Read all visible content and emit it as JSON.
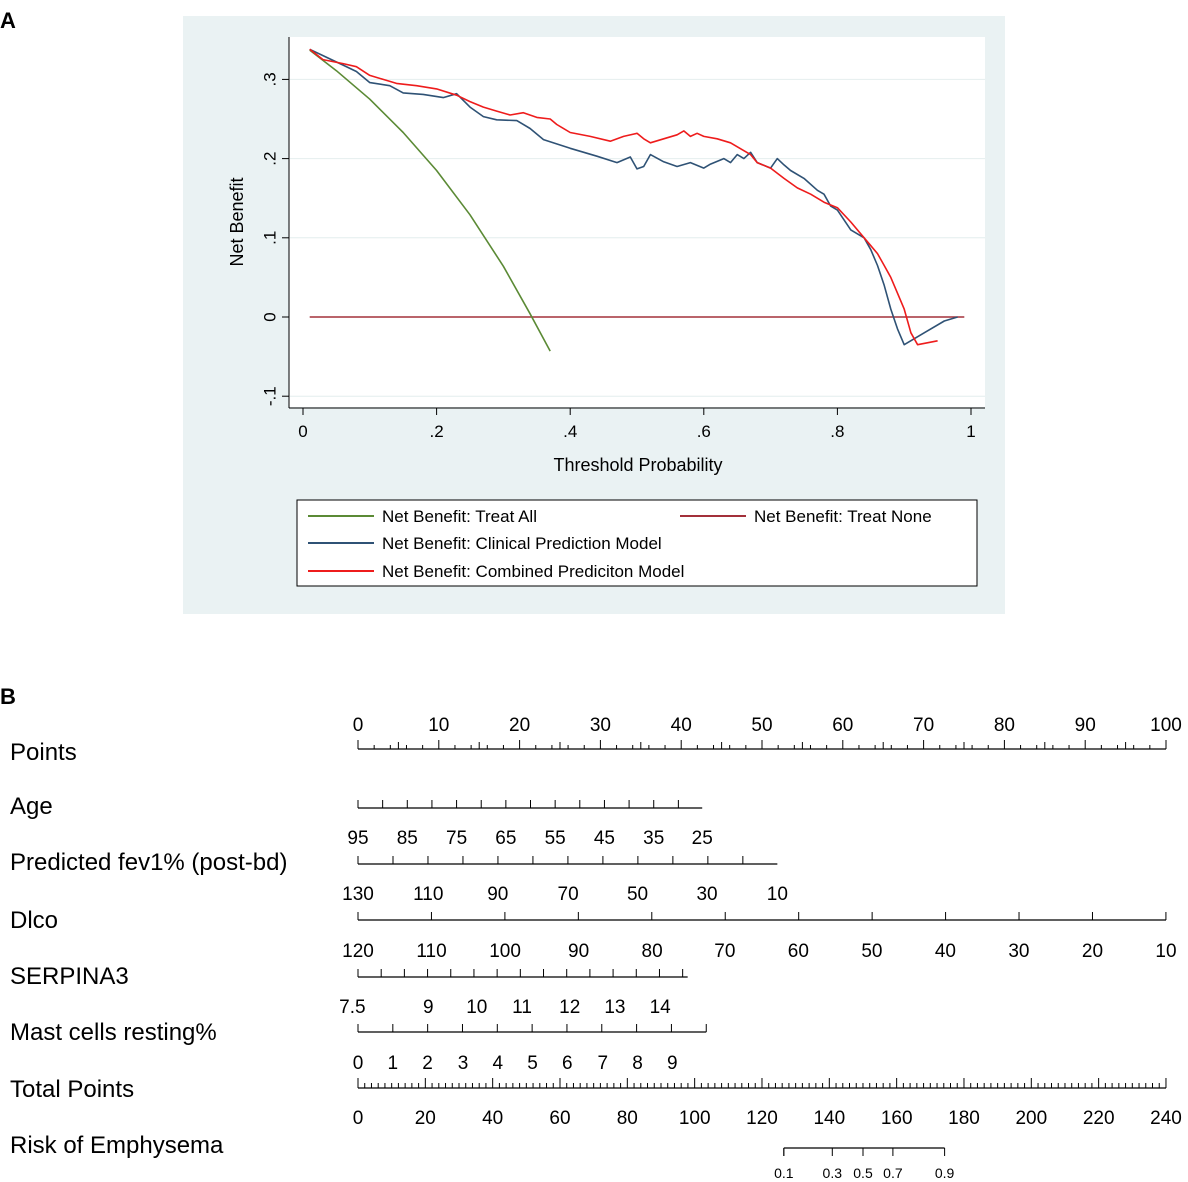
{
  "panel_a_label": "A",
  "panel_b_label": "B",
  "colors": {
    "treat_all": "#5b8a35",
    "treat_none": "#a3303a",
    "clinical": "#2f5275",
    "combined": "#ee1c1c",
    "panel_bg": "#eaf2f3",
    "grid": "#e4eeee"
  },
  "chart_data": [
    {
      "type": "line",
      "title": "",
      "xlabel": "Threshold Probability",
      "ylabel": "Net Benefit",
      "xlim": [
        0,
        1
      ],
      "ylim": [
        -0.1,
        0.35
      ],
      "xticks": [
        0,
        0.2,
        0.4,
        0.6,
        0.8,
        1
      ],
      "xtick_labels": [
        "0",
        ".2",
        ".4",
        ".6",
        ".8",
        "1"
      ],
      "yticks": [
        -0.1,
        0,
        0.1,
        0.2,
        0.3
      ],
      "ytick_labels": [
        "-.1",
        "0",
        ".1",
        ".2",
        ".3"
      ],
      "legend_position": "bottom",
      "series": [
        {
          "key": "treat_all",
          "name": "Net Benefit: Treat All",
          "x": [
            0.01,
            0.05,
            0.1,
            0.15,
            0.2,
            0.25,
            0.3,
            0.34,
            0.37
          ],
          "y": [
            0.337,
            0.311,
            0.275,
            0.233,
            0.185,
            0.129,
            0.064,
            0.004,
            -0.043
          ]
        },
        {
          "key": "treat_none",
          "name": "Net Benefit: Treat None",
          "x": [
            0.01,
            0.99
          ],
          "y": [
            0,
            0
          ]
        },
        {
          "key": "clinical",
          "name": "Net Benefit: Clinical Prediction Model",
          "x": [
            0.01,
            0.03,
            0.06,
            0.08,
            0.1,
            0.13,
            0.15,
            0.18,
            0.21,
            0.23,
            0.25,
            0.27,
            0.29,
            0.32,
            0.34,
            0.36,
            0.4,
            0.44,
            0.47,
            0.49,
            0.5,
            0.51,
            0.52,
            0.54,
            0.56,
            0.58,
            0.6,
            0.61,
            0.63,
            0.64,
            0.65,
            0.66,
            0.67,
            0.68,
            0.7,
            0.71,
            0.72,
            0.73,
            0.75,
            0.77,
            0.78,
            0.79,
            0.8,
            0.82,
            0.84,
            0.85,
            0.86,
            0.87,
            0.88,
            0.89,
            0.9,
            0.93,
            0.96,
            0.98
          ],
          "y": [
            0.338,
            0.33,
            0.318,
            0.31,
            0.296,
            0.292,
            0.283,
            0.281,
            0.277,
            0.282,
            0.265,
            0.253,
            0.249,
            0.248,
            0.238,
            0.224,
            0.213,
            0.203,
            0.195,
            0.202,
            0.187,
            0.19,
            0.205,
            0.196,
            0.19,
            0.195,
            0.188,
            0.193,
            0.2,
            0.195,
            0.205,
            0.2,
            0.208,
            0.195,
            0.188,
            0.2,
            0.192,
            0.185,
            0.175,
            0.16,
            0.155,
            0.14,
            0.135,
            0.11,
            0.1,
            0.085,
            0.065,
            0.04,
            0.01,
            -0.015,
            -0.035,
            -0.02,
            -0.005,
            0
          ]
        },
        {
          "key": "combined",
          "name": "Net Benefit: Combined Prediciton Model",
          "x": [
            0.01,
            0.03,
            0.06,
            0.08,
            0.1,
            0.12,
            0.14,
            0.17,
            0.2,
            0.23,
            0.25,
            0.27,
            0.29,
            0.31,
            0.33,
            0.35,
            0.37,
            0.38,
            0.4,
            0.43,
            0.46,
            0.48,
            0.5,
            0.51,
            0.52,
            0.54,
            0.56,
            0.57,
            0.58,
            0.59,
            0.6,
            0.62,
            0.64,
            0.66,
            0.67,
            0.68,
            0.7,
            0.72,
            0.74,
            0.76,
            0.78,
            0.8,
            0.82,
            0.84,
            0.85,
            0.86,
            0.87,
            0.88,
            0.89,
            0.9,
            0.91,
            0.92,
            0.95
          ],
          "y": [
            0.338,
            0.325,
            0.32,
            0.316,
            0.305,
            0.3,
            0.295,
            0.292,
            0.288,
            0.28,
            0.272,
            0.265,
            0.26,
            0.255,
            0.258,
            0.252,
            0.25,
            0.243,
            0.233,
            0.228,
            0.222,
            0.228,
            0.232,
            0.225,
            0.22,
            0.225,
            0.23,
            0.235,
            0.228,
            0.232,
            0.228,
            0.225,
            0.22,
            0.21,
            0.205,
            0.195,
            0.188,
            0.175,
            0.163,
            0.155,
            0.145,
            0.138,
            0.12,
            0.1,
            0.09,
            0.08,
            0.065,
            0.05,
            0.03,
            0.01,
            -0.02,
            -0.035,
            -0.03
          ]
        }
      ]
    },
    {
      "type": "nomogram",
      "rows": [
        {
          "key": "points",
          "label": "Points",
          "ticks": [
            {
              "v": 0,
              "t": "0"
            },
            {
              "v": 10,
              "t": "10"
            },
            {
              "v": 20,
              "t": "20"
            },
            {
              "v": 30,
              "t": "30"
            },
            {
              "v": 40,
              "t": "40"
            },
            {
              "v": 50,
              "t": "50"
            },
            {
              "v": 60,
              "t": "60"
            },
            {
              "v": 70,
              "t": "70"
            },
            {
              "v": 80,
              "t": "80"
            },
            {
              "v": 90,
              "t": "90"
            },
            {
              "v": 100,
              "t": "100"
            }
          ]
        },
        {
          "key": "age",
          "label": "Age",
          "ticks": [
            {
              "v": 0,
              "t": "95"
            },
            {
              "v": 6.1,
              "t": "85"
            },
            {
              "v": 12.2,
              "t": "75"
            },
            {
              "v": 18.3,
              "t": "65"
            },
            {
              "v": 24.4,
              "t": "55"
            },
            {
              "v": 30.5,
              "t": "45"
            },
            {
              "v": 36.6,
              "t": "35"
            },
            {
              "v": 42.6,
              "t": "25"
            }
          ]
        },
        {
          "key": "fev1",
          "label": "Predicted fev1% (post-bd)",
          "ticks": [
            {
              "v": 0,
              "t": "130"
            },
            {
              "v": 8.7,
              "t": "110"
            },
            {
              "v": 17.3,
              "t": "90"
            },
            {
              "v": 26,
              "t": "70"
            },
            {
              "v": 34.6,
              "t": "50"
            },
            {
              "v": 43.2,
              "t": "30"
            },
            {
              "v": 51.9,
              "t": "10"
            }
          ]
        },
        {
          "key": "dlco",
          "label": "Dlco",
          "ticks": [
            {
              "v": 0,
              "t": "120"
            },
            {
              "v": 9.1,
              "t": "110"
            },
            {
              "v": 18.2,
              "t": "100"
            },
            {
              "v": 27.3,
              "t": "90"
            },
            {
              "v": 36.4,
              "t": "80"
            },
            {
              "v": 45.4,
              "t": "70"
            },
            {
              "v": 54.5,
              "t": "60"
            },
            {
              "v": 63.6,
              "t": "50"
            },
            {
              "v": 72.7,
              "t": "40"
            },
            {
              "v": 81.8,
              "t": "30"
            },
            {
              "v": 90.9,
              "t": "20"
            },
            {
              "v": 100,
              "t": "10"
            }
          ]
        },
        {
          "key": "serpina3",
          "label": "SERPINA3",
          "ticks": [
            {
              "v": -0.7,
              "t": "7.5"
            },
            {
              "v": 8.7,
              "t": "9"
            },
            {
              "v": 14.7,
              "t": "10"
            },
            {
              "v": 20.3,
              "t": "11"
            },
            {
              "v": 26.2,
              "t": "12"
            },
            {
              "v": 31.8,
              "t": "13"
            },
            {
              "v": 37.4,
              "t": "14"
            }
          ]
        },
        {
          "key": "mast",
          "label": "Mast cells resting%",
          "ticks": [
            {
              "v": 0,
              "t": "0"
            },
            {
              "v": 4.3,
              "t": "1"
            },
            {
              "v": 8.6,
              "t": "2"
            },
            {
              "v": 13,
              "t": "3"
            },
            {
              "v": 17.3,
              "t": "4"
            },
            {
              "v": 21.6,
              "t": "5"
            },
            {
              "v": 25.9,
              "t": "6"
            },
            {
              "v": 30.3,
              "t": "7"
            },
            {
              "v": 34.6,
              "t": "8"
            },
            {
              "v": 38.9,
              "t": "9"
            }
          ]
        },
        {
          "key": "total",
          "label": "Total Points",
          "ticks": [
            {
              "v": 0,
              "t": "0"
            },
            {
              "v": 8.33,
              "t": "20"
            },
            {
              "v": 16.67,
              "t": "40"
            },
            {
              "v": 25,
              "t": "60"
            },
            {
              "v": 33.33,
              "t": "80"
            },
            {
              "v": 41.67,
              "t": "100"
            },
            {
              "v": 50,
              "t": "120"
            },
            {
              "v": 58.33,
              "t": "140"
            },
            {
              "v": 66.67,
              "t": "160"
            },
            {
              "v": 75,
              "t": "180"
            },
            {
              "v": 83.33,
              "t": "200"
            },
            {
              "v": 91.67,
              "t": "220"
            },
            {
              "v": 100,
              "t": "240"
            }
          ]
        },
        {
          "key": "risk",
          "label": "Risk of Emphysema",
          "ticks": [
            {
              "v": 52.7,
              "t": "0.1"
            },
            {
              "v": 58.7,
              "t": "0.3"
            },
            {
              "v": 62.5,
              "t": "0.5"
            },
            {
              "v": 66.2,
              "t": "0.7"
            },
            {
              "v": 72.6,
              "t": "0.9"
            }
          ]
        }
      ]
    }
  ]
}
